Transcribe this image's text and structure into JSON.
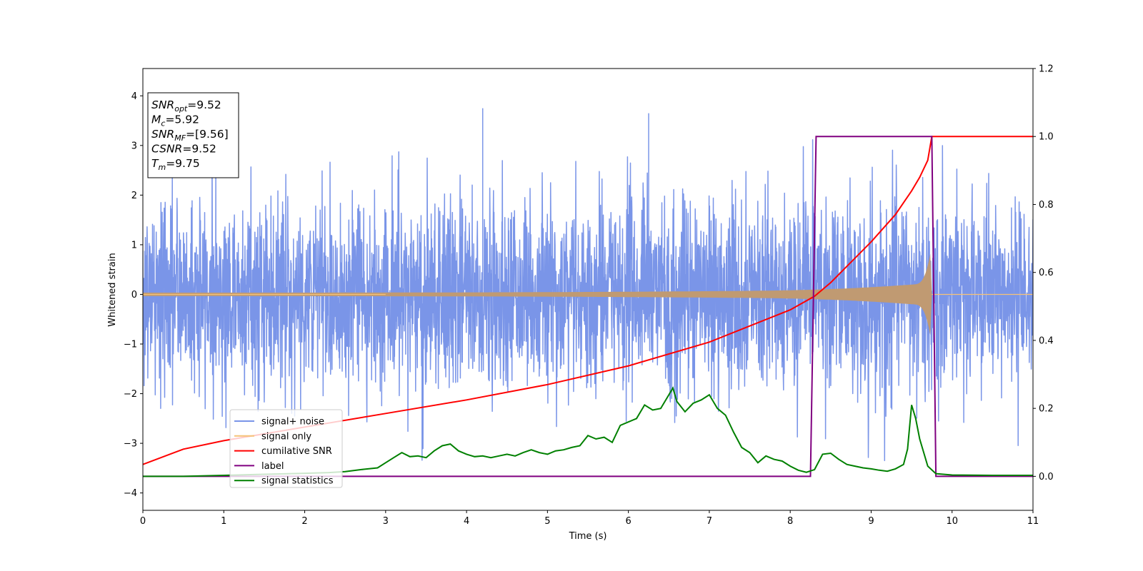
{
  "chart_data": {
    "type": "line",
    "xlabel": "Time (s)",
    "ylabel": "Whitened strain",
    "xlim": [
      0,
      11
    ],
    "ylim": [
      -4.35,
      4.55
    ],
    "y2lim": [
      -0.1,
      1.2
    ],
    "xticks": [
      "0",
      "1",
      "2",
      "3",
      "4",
      "5",
      "6",
      "7",
      "8",
      "9",
      "10",
      "11"
    ],
    "yticks": [
      "4",
      "3",
      "2",
      "1",
      "0",
      "−1",
      "−2",
      "−3",
      "−4"
    ],
    "y2ticks": [
      "1.2",
      "1.0",
      "0.8",
      "0.6",
      "0.4",
      "0.2",
      "0.0"
    ],
    "annotations": [
      {
        "sym": "SNR",
        "sub": "opt",
        "rest": "=9.52"
      },
      {
        "sym": "M",
        "sub": "c",
        "rest": "=5.92"
      },
      {
        "sym": "SNR",
        "sub": "MF",
        "rest": "=[9.56]"
      },
      {
        "sym": "CSNR",
        "sub": "",
        "rest": "=9.52"
      },
      {
        "sym": "T",
        "sub": "m",
        "rest": "=9.75"
      }
    ],
    "legend_position": "lower-left",
    "series": [
      {
        "name": "signal+ noise",
        "color": "#7a95e8",
        "axis": "left",
        "envelope_peak": 3.75,
        "envelope_min": -3.35
      },
      {
        "name": "signal only",
        "color": "#f5c277",
        "axis": "left",
        "end": 9.75,
        "max_amplitude": 1.0
      },
      {
        "name": "cumilative SNR",
        "color": "#ff0000",
        "axis": "right",
        "x": [
          0,
          0.5,
          1,
          2,
          3,
          4,
          5,
          6,
          7,
          8,
          8.3,
          8.5,
          9,
          9.3,
          9.5,
          9.6,
          9.7,
          9.75,
          11
        ],
        "y": [
          0.035,
          0.08,
          0.105,
          0.145,
          0.185,
          0.225,
          0.27,
          0.325,
          0.395,
          0.49,
          0.53,
          0.57,
          0.69,
          0.77,
          0.84,
          0.88,
          0.93,
          1.0,
          1.0
        ]
      },
      {
        "name": "label",
        "color": "#800080",
        "axis": "right",
        "x": [
          0,
          8.25,
          8.32,
          9.75,
          9.8,
          11
        ],
        "y": [
          0,
          0,
          1,
          1,
          0,
          0
        ]
      },
      {
        "name": "signal statistics",
        "color": "#008000",
        "axis": "right",
        "x": [
          0,
          0.5,
          1,
          1.5,
          2,
          2.3,
          2.5,
          2.7,
          2.9,
          3.0,
          3.1,
          3.2,
          3.3,
          3.4,
          3.5,
          3.6,
          3.7,
          3.8,
          3.9,
          4.0,
          4.1,
          4.2,
          4.3,
          4.4,
          4.5,
          4.6,
          4.7,
          4.8,
          4.9,
          5.0,
          5.1,
          5.2,
          5.3,
          5.4,
          5.5,
          5.6,
          5.7,
          5.8,
          5.9,
          6.0,
          6.1,
          6.2,
          6.3,
          6.4,
          6.5,
          6.55,
          6.6,
          6.7,
          6.8,
          6.9,
          7.0,
          7.1,
          7.2,
          7.3,
          7.4,
          7.5,
          7.6,
          7.7,
          7.8,
          7.9,
          8.0,
          8.1,
          8.2,
          8.3,
          8.4,
          8.5,
          8.6,
          8.7,
          8.8,
          8.9,
          9.0,
          9.1,
          9.2,
          9.3,
          9.4,
          9.45,
          9.5,
          9.55,
          9.6,
          9.7,
          9.8,
          10,
          10.5,
          11
        ],
        "y": [
          0,
          0,
          0.003,
          0.006,
          0.009,
          0.011,
          0.014,
          0.02,
          0.025,
          0.04,
          0.055,
          0.07,
          0.058,
          0.06,
          0.055,
          0.075,
          0.09,
          0.095,
          0.075,
          0.065,
          0.058,
          0.06,
          0.055,
          0.06,
          0.065,
          0.06,
          0.07,
          0.078,
          0.07,
          0.065,
          0.075,
          0.078,
          0.085,
          0.09,
          0.12,
          0.11,
          0.115,
          0.1,
          0.15,
          0.16,
          0.17,
          0.21,
          0.195,
          0.2,
          0.24,
          0.26,
          0.22,
          0.19,
          0.215,
          0.225,
          0.24,
          0.2,
          0.18,
          0.13,
          0.085,
          0.07,
          0.04,
          0.06,
          0.05,
          0.045,
          0.03,
          0.018,
          0.012,
          0.02,
          0.065,
          0.068,
          0.05,
          0.035,
          0.03,
          0.025,
          0.022,
          0.018,
          0.015,
          0.022,
          0.035,
          0.08,
          0.21,
          0.17,
          0.11,
          0.03,
          0.008,
          0.004,
          0.003,
          0.003
        ]
      }
    ]
  }
}
